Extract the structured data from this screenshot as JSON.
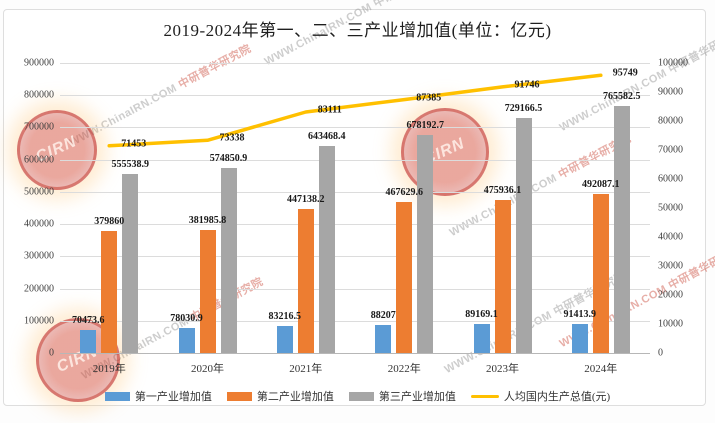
{
  "title": "2019-2024年第一、二、三产业增加值(单位：亿元)",
  "chart_data": {
    "type": "bar",
    "title": "2019-2024年第一、二、三产业增加值(单位：亿元)",
    "categories": [
      "2019年",
      "2020年",
      "2021年",
      "2022年",
      "2023年",
      "2024年"
    ],
    "series": [
      {
        "name": "第一产业增加值",
        "type": "bar",
        "axis": "left",
        "color": "#5B9BD5",
        "values": [
          70473.6,
          78030.9,
          83216.5,
          88207,
          89169.1,
          91413.9
        ]
      },
      {
        "name": "第二产业增加值",
        "type": "bar",
        "axis": "left",
        "color": "#ED7D31",
        "values": [
          379860,
          381985.8,
          447138.2,
          467629.6,
          475936.1,
          492087.1
        ]
      },
      {
        "name": "第三产业增加值",
        "type": "bar",
        "axis": "left",
        "color": "#A6A6A6",
        "values": [
          555538.9,
          574850.9,
          643468.4,
          678192.7,
          729166.5,
          765582.5
        ]
      },
      {
        "name": "人均国内生产总值(元)",
        "type": "line",
        "axis": "right",
        "color": "#FFC000",
        "values": [
          71453,
          73338,
          83111,
          87385,
          91746,
          95749
        ]
      }
    ],
    "left_axis": {
      "min": 0,
      "max": 900000,
      "step": 100000
    },
    "right_axis": {
      "min": 0,
      "max": 100000,
      "step": 10000
    },
    "grid": true,
    "legend_position": "bottom",
    "data_labels": true
  },
  "watermark": {
    "text_latin": "WWW.ChinaIRN.COM",
    "text_cjk": "中研普华研究院",
    "stamp_text": "CIRN"
  },
  "colors": {
    "grid": "#dcdcdc",
    "axis": "#b7b7b7",
    "label_text": "#1a1a1a"
  }
}
